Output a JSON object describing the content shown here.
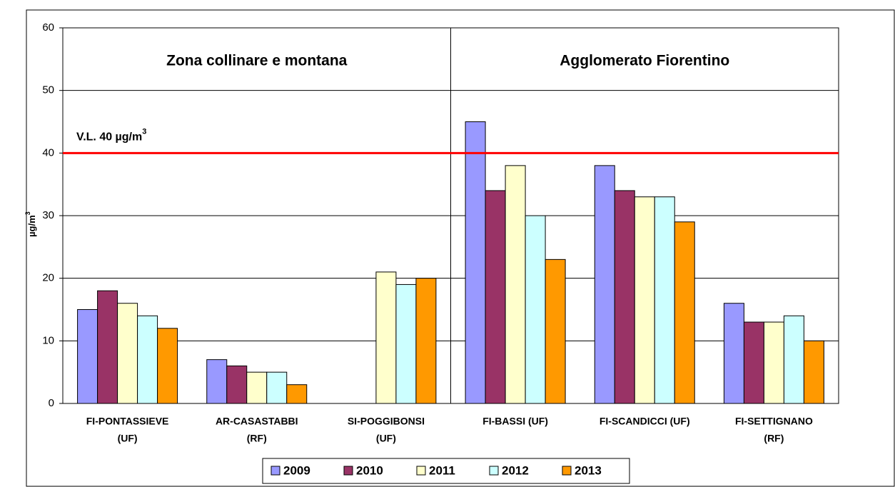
{
  "chart_data": {
    "type": "bar",
    "y_label": {
      "text": "µg/m",
      "sup": "3"
    },
    "categories": [
      [
        "FI-PONTASSIEVE",
        "(UF)"
      ],
      [
        "AR-CASASTABBI",
        "(RF)"
      ],
      [
        "SI-POGGIBONSI",
        "(UF)"
      ],
      [
        "FI-BASSI (UF)"
      ],
      [
        "FI-SCANDICCI (UF)"
      ],
      [
        "FI-SETTIGNANO",
        "(RF)"
      ]
    ],
    "series": [
      {
        "name": "2009",
        "color": "#9999ff",
        "values": [
          15,
          7,
          null,
          45,
          38,
          16
        ]
      },
      {
        "name": "2010",
        "color": "#993366",
        "values": [
          18,
          6,
          null,
          34,
          34,
          13
        ]
      },
      {
        "name": "2011",
        "color": "#ffffcc",
        "values": [
          16,
          5,
          21,
          38,
          33,
          13
        ]
      },
      {
        "name": "2012",
        "color": "#ccffff",
        "values": [
          14,
          5,
          19,
          30,
          33,
          14
        ]
      },
      {
        "name": "2013",
        "color": "#ff9900",
        "values": [
          12,
          3,
          20,
          23,
          29,
          10
        ]
      }
    ],
    "ylim": [
      0,
      60
    ],
    "yticks": [
      0,
      10,
      20,
      30,
      40,
      50,
      60
    ],
    "grid": true,
    "reference_line": {
      "value": 40,
      "text": "V.L. 40 µg/m",
      "sup": "3",
      "color": "#ff0000"
    },
    "zones": [
      {
        "label": "Zona collinare e montana"
      },
      {
        "label": "Agglomerato Fiorentino"
      }
    ],
    "legend": "bottom"
  }
}
